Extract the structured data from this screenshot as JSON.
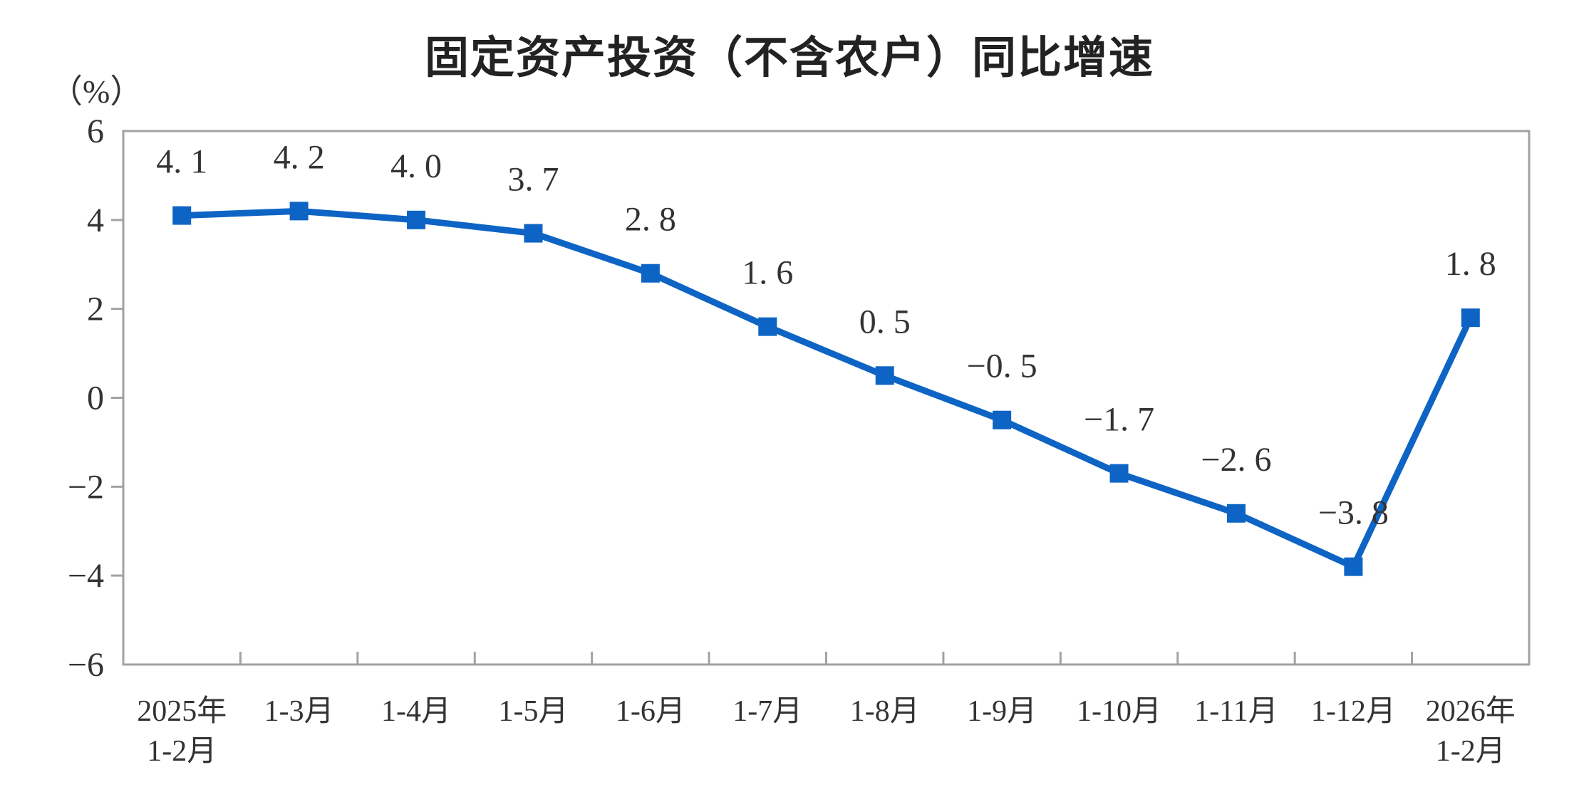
{
  "header": {
    "title": "固定资产投资（不含农户）同比增速"
  },
  "chart_data": {
    "type": "line",
    "title": "固定资产投资（不含农户）同比增速",
    "unit_label": "（%）",
    "categories": [
      [
        "2025年",
        "1-2月"
      ],
      [
        "1-3月"
      ],
      [
        "1-4月"
      ],
      [
        "1-5月"
      ],
      [
        "1-6月"
      ],
      [
        "1-7月"
      ],
      [
        "1-8月"
      ],
      [
        "1-9月"
      ],
      [
        "1-10月"
      ],
      [
        "1-11月"
      ],
      [
        "1-12月"
      ],
      [
        "2026年",
        "1-2月"
      ]
    ],
    "values": [
      4.1,
      4.2,
      4.0,
      3.7,
      2.8,
      1.6,
      0.5,
      -0.5,
      -1.7,
      -2.6,
      -3.8,
      1.8
    ],
    "point_labels": [
      "4. 1",
      "4. 2",
      "4. 0",
      "3. 7",
      "2. 8",
      "1. 6",
      "0. 5",
      "−0. 5",
      "−1. 7",
      "−2. 6",
      "−3. 8",
      "1. 8"
    ],
    "xlabel": "",
    "ylabel": "（%）",
    "ylim": [
      -6,
      6
    ],
    "y_ticks": [
      6,
      4,
      2,
      0,
      -2,
      -4,
      -6
    ],
    "y_tick_labels": [
      "6",
      "4",
      "2",
      "0",
      "-2",
      "-4",
      "-6"
    ],
    "grid": "off",
    "legend": "none",
    "colors": {
      "line": "#0d64c4",
      "marker": "#0d64c4",
      "axis": "#a2a2a2",
      "text": "#333333"
    }
  }
}
